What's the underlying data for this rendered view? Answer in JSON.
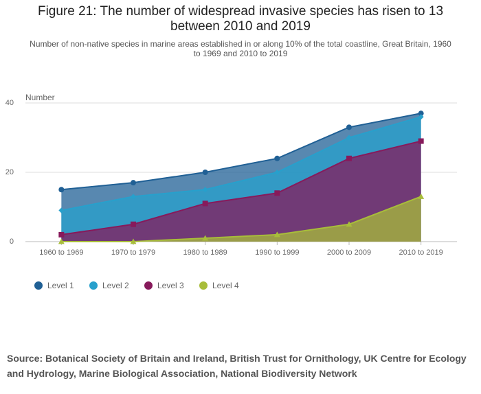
{
  "chart_data": {
    "type": "area",
    "title": "Figure 21: The number of widespread invasive species has risen to 13 between 2010 and 2019",
    "subtitle": "Number of non-native species in marine areas established in or along 10% of the total coastline, Great Britain, 1960 to 1969 and 2010 to 2019",
    "y_label": "Number",
    "categories": [
      "1960 to 1969",
      "1970 to 1979",
      "1980 to 1989",
      "1990 to 1999",
      "2000 to 2009",
      "2010 to 2019"
    ],
    "series": [
      {
        "name": "Level 1",
        "color": "#206095",
        "marker": "circle",
        "values": [
          15,
          17,
          20,
          24,
          33,
          37
        ]
      },
      {
        "name": "Level 2",
        "color": "#27a0cc",
        "marker": "diamond",
        "values": [
          9,
          13,
          15,
          20,
          30,
          36
        ]
      },
      {
        "name": "Level 3",
        "color": "#871a5b",
        "marker": "square",
        "values": [
          2,
          5,
          11,
          14,
          24,
          29
        ]
      },
      {
        "name": "Level 4",
        "color": "#a8bd3a",
        "marker": "triangle",
        "values": [
          0,
          0,
          1,
          2,
          5,
          13
        ]
      }
    ],
    "ylim": [
      0,
      40
    ],
    "yticks": [
      0,
      20,
      40
    ],
    "grid": true,
    "source": "Source: Botanical Society of Britain and Ireland, British Trust for Ornithology, UK Centre for Ecology and Hydrology, Marine Biological Association, National Biodiversity Network"
  }
}
